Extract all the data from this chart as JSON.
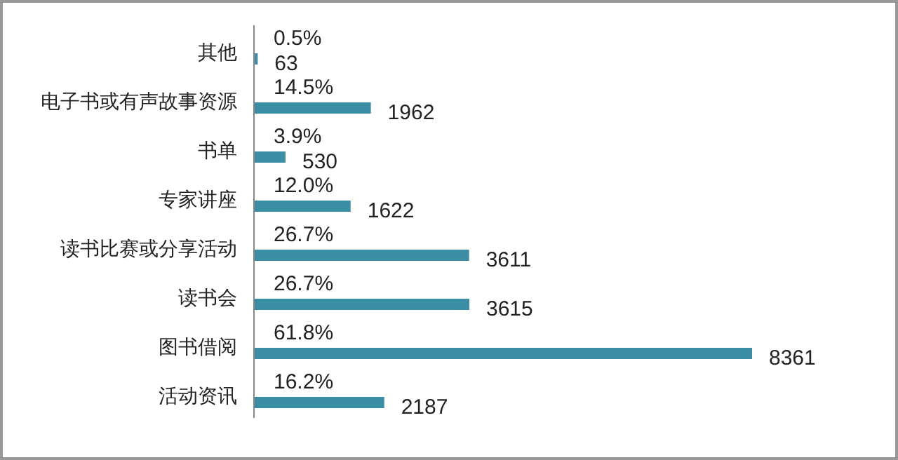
{
  "chart_data": {
    "type": "bar",
    "orientation": "horizontal",
    "categories": [
      "其他",
      "电子书或有声故事资源",
      "书单",
      "专家讲座",
      "读书比赛或分享活动",
      "读书会",
      "图书借阅",
      "活动资讯"
    ],
    "values": [
      63,
      1962,
      530,
      1622,
      3611,
      3615,
      8361,
      2187
    ],
    "color": "#3a8fa6",
    "data_labels": true,
    "annotations": [
      "0.5%",
      "14.5%",
      "3.9%",
      "12.0%",
      "26.7%",
      "26.7%",
      "61.8%",
      "16.2%"
    ]
  }
}
